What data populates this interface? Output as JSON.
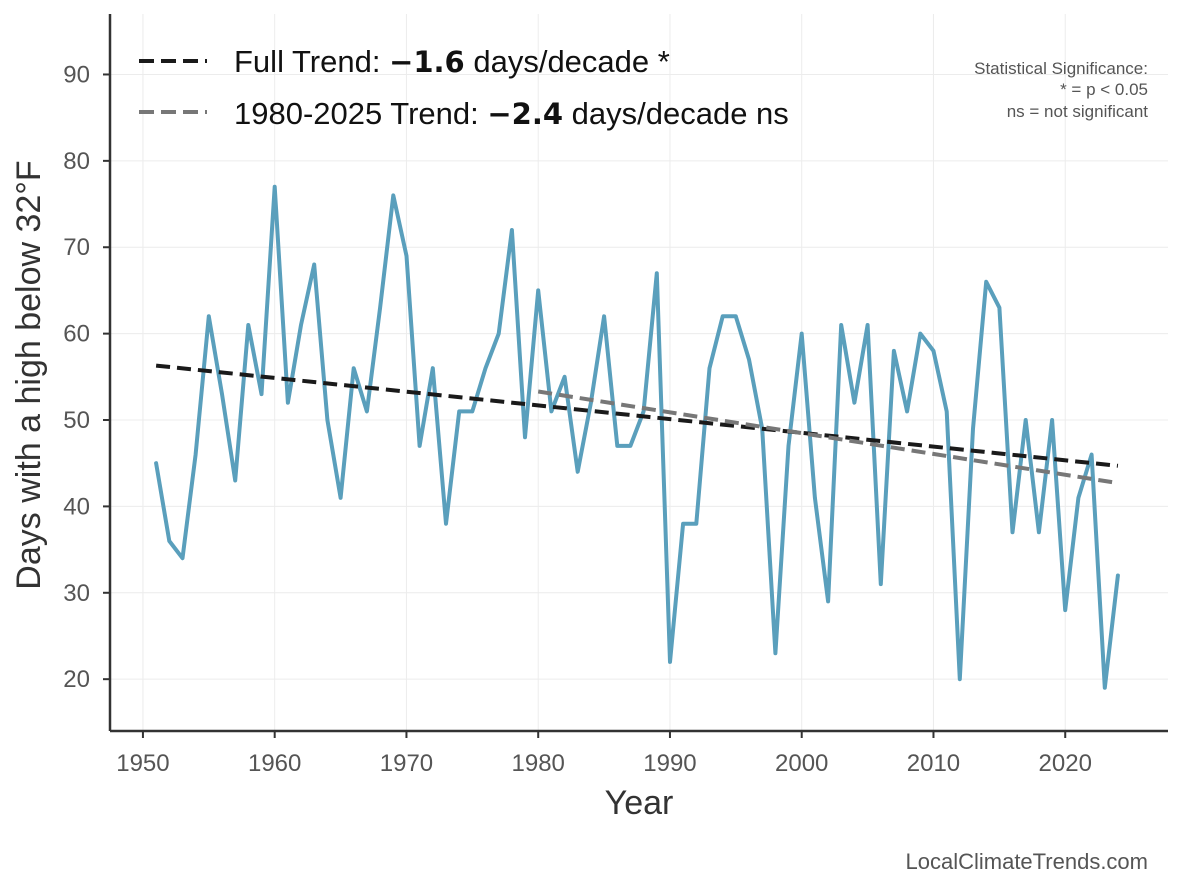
{
  "chart_data": {
    "type": "line",
    "title": "",
    "xlabel": "Year",
    "ylabel": "Days with a high below 32°F",
    "xlim": [
      1947.5,
      2027.8
    ],
    "ylim": [
      14,
      97
    ],
    "xticks": [
      1950,
      1960,
      1970,
      1980,
      1990,
      2000,
      2010,
      2020
    ],
    "yticks": [
      20,
      30,
      40,
      50,
      60,
      70,
      80,
      90
    ],
    "grid": true,
    "legend_position": "top-left",
    "series": [
      {
        "color": "#5a9fbc",
        "x": [
          1951,
          1952,
          1953,
          1954,
          1955,
          1956,
          1957,
          1958,
          1959,
          1960,
          1961,
          1962,
          1963,
          1964,
          1965,
          1966,
          1967,
          1968,
          1969,
          1970,
          1971,
          1972,
          1973,
          1974,
          1975,
          1976,
          1977,
          1978,
          1979,
          1980,
          1981,
          1982,
          1983,
          1984,
          1985,
          1986,
          1987,
          1988,
          1989,
          1990,
          1991,
          1992,
          1993,
          1994,
          1995,
          1996,
          1997,
          1998,
          1999,
          2000,
          2001,
          2002,
          2003,
          2004,
          2005,
          2006,
          2007,
          2008,
          2009,
          2010,
          2011,
          2012,
          2013,
          2014,
          2015,
          2016,
          2017,
          2018,
          2019,
          2020,
          2021,
          2022,
          2023,
          2024
        ],
        "y": [
          45,
          36,
          34,
          46,
          62,
          53,
          43,
          61,
          53,
          77,
          52,
          61,
          68,
          50,
          41,
          56,
          51,
          63,
          76,
          69,
          47,
          56,
          38,
          51,
          51,
          56,
          60,
          72,
          48,
          65,
          51,
          55,
          44,
          52,
          62,
          47,
          47,
          51,
          67,
          22,
          38,
          38,
          56,
          62,
          62,
          57,
          49,
          23,
          47,
          60,
          41,
          29,
          61,
          52,
          61,
          31,
          58,
          51,
          60,
          58,
          51,
          20,
          49,
          66,
          63,
          37,
          50,
          37,
          50,
          28,
          41,
          46,
          19,
          32
        ]
      }
    ],
    "trends": [
      {
        "label_prefix": "Full Trend: ",
        "rate": "−1.6",
        "label_suffix": " days/decade *",
        "color": "#1a1a1a",
        "x": [
          1951,
          2024
        ],
        "y": [
          56.3,
          44.7
        ]
      },
      {
        "label_prefix": "1980-2025 Trend: ",
        "rate": "−2.4",
        "label_suffix": " days/decade ns",
        "color": "#777777",
        "x": [
          1980,
          2024
        ],
        "y": [
          53.3,
          42.7
        ]
      }
    ],
    "annotations": {
      "significance_title": "Statistical Significance:",
      "significance_line1": "* = p < 0.05",
      "significance_line2": "ns = not significant"
    }
  },
  "footer": {
    "credit": "LocalClimateTrends.com"
  }
}
